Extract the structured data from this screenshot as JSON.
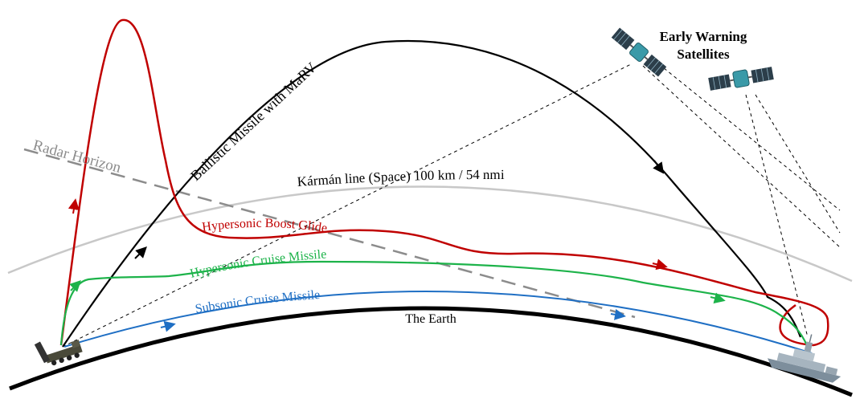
{
  "labels": {
    "early_warning_line1": "Early Warning",
    "early_warning_line2": "Satellites",
    "ballistic": "Ballistic Missile with MaRV",
    "radar_horizon": "Radar Horizon",
    "karman": "Kármán line (Space) 100 km / 54 nmi",
    "boost_glide": "Hypersonic Boost Glide",
    "hyper_cruise": "Hypersonic Cruise Missile",
    "subsonic": "Subsonic Cruise Missile",
    "earth": "The Earth"
  },
  "colors": {
    "ballistic": "#000000",
    "boost_glide": "#c00000",
    "hyper_cruise": "#1db34a",
    "subsonic": "#1f6fc4",
    "karman": "#c8c8c8",
    "radar": "#8c8c8c",
    "earth": "#000000",
    "satellite_panel": "#2c3e4a",
    "satellite_body": "#3a9aa8"
  },
  "icons": {
    "satellite": "satellite-icon",
    "launcher": "launcher-vehicle-icon",
    "ship": "ship-icon"
  }
}
